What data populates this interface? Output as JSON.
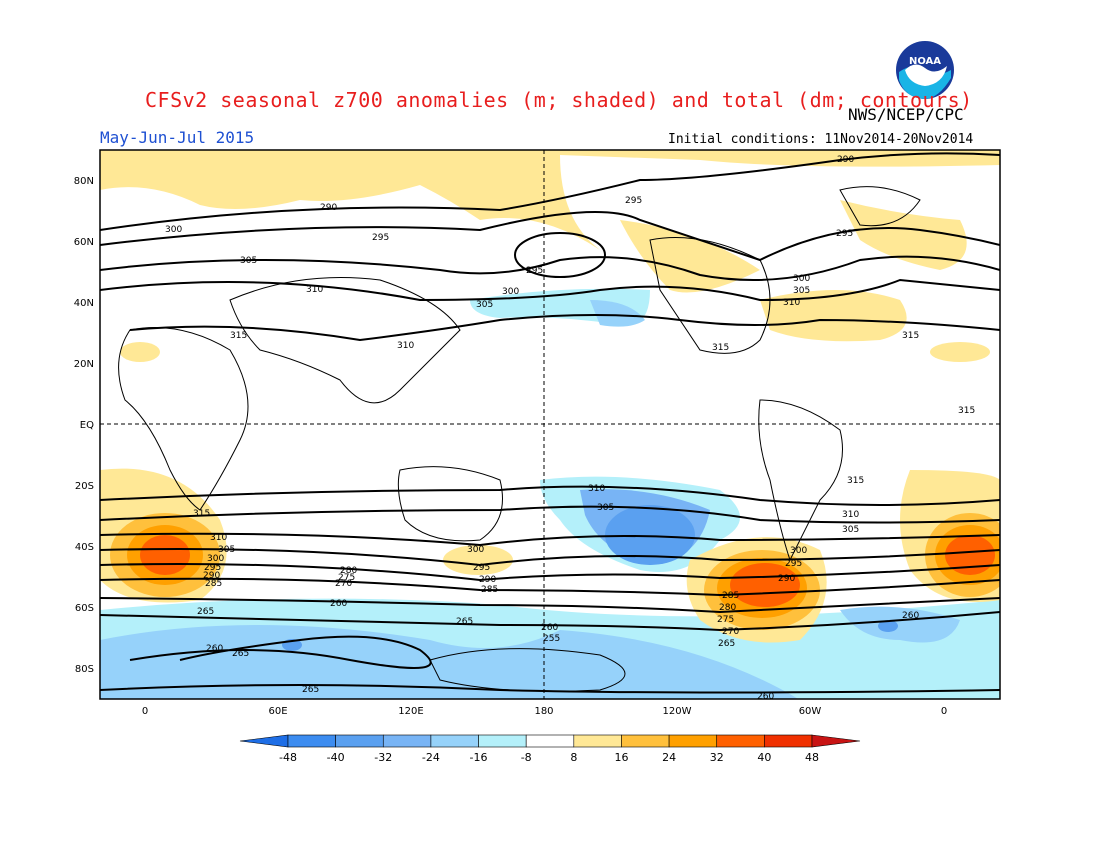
{
  "title": "CFSv2 seasonal z700 anomalies (m; shaded) and total (dm; contours)",
  "agency": "NWS/NCEP/CPC",
  "logo_text": "NOAA",
  "period": "May-Jun-Jul 2015",
  "initial_conditions": "Initial conditions: 11Nov2014-20Nov2014",
  "map": {
    "lat_labels": [
      "80N",
      "60N",
      "40N",
      "20N",
      "EQ",
      "20S",
      "40S",
      "60S",
      "80S"
    ],
    "lon_labels": [
      "0",
      "60E",
      "120E",
      "180",
      "120W",
      "60W",
      "0"
    ]
  },
  "colorbar": {
    "ticks": [
      "-48",
      "-40",
      "-32",
      "-24",
      "-16",
      "-8",
      "8",
      "16",
      "24",
      "32",
      "40",
      "48"
    ],
    "colors": [
      "#1e6ee6",
      "#3c8cf0",
      "#5aa0f0",
      "#78b4f5",
      "#96d2fa",
      "#b4f0fa",
      "#ffffff",
      "#ffe896",
      "#ffc03c",
      "#ffa000",
      "#ff6000",
      "#f03000",
      "#c81414"
    ]
  },
  "contour_labels": {
    "north": [
      "290",
      "295",
      "300",
      "305",
      "310",
      "315",
      "295",
      "290",
      "300",
      "305",
      "310",
      "315",
      "305",
      "300",
      "295",
      "290",
      "310",
      "315",
      "315"
    ],
    "south": [
      "310",
      "305",
      "300",
      "295",
      "290",
      "285",
      "280",
      "275",
      "270",
      "265",
      "260",
      "255",
      "260",
      "265",
      "265",
      "260",
      "285",
      "280",
      "275",
      "270",
      "265",
      "295",
      "290",
      "300",
      "305",
      "310",
      "315",
      "260",
      "265",
      "260"
    ]
  },
  "chart_data": {
    "type": "heatmap",
    "title": "CFSv2 seasonal z700 anomalies (m; shaded) and total (dm; contours)",
    "x_axis": [
      "0",
      "60E",
      "120E",
      "180",
      "120W",
      "60W",
      "0"
    ],
    "y_axis": [
      "80N",
      "60N",
      "40N",
      "20N",
      "EQ",
      "20S",
      "40S",
      "60S",
      "80S"
    ],
    "color_scale": [
      -48,
      -40,
      -32,
      -24,
      -16,
      -8,
      8,
      16,
      24,
      32,
      40,
      48
    ],
    "anomaly_features": [
      {
        "region": "South Atlantic / SW Africa 40S",
        "sign": "positive",
        "peak_m": 40
      },
      {
        "region": "South Pacific near S. America 50S",
        "sign": "positive",
        "peak_m": 40
      },
      {
        "region": "South Pacific 150W 40S",
        "sign": "negative",
        "peak_m": -32
      },
      {
        "region": "Southern ocean ring 60S",
        "sign": "negative",
        "peak_m": -16
      },
      {
        "region": "Arctic / N. Pacific",
        "sign": "positive",
        "peak_m": 16
      },
      {
        "region": "N. Pacific 150W 40N",
        "sign": "negative",
        "peak_m": -16
      }
    ]
  }
}
